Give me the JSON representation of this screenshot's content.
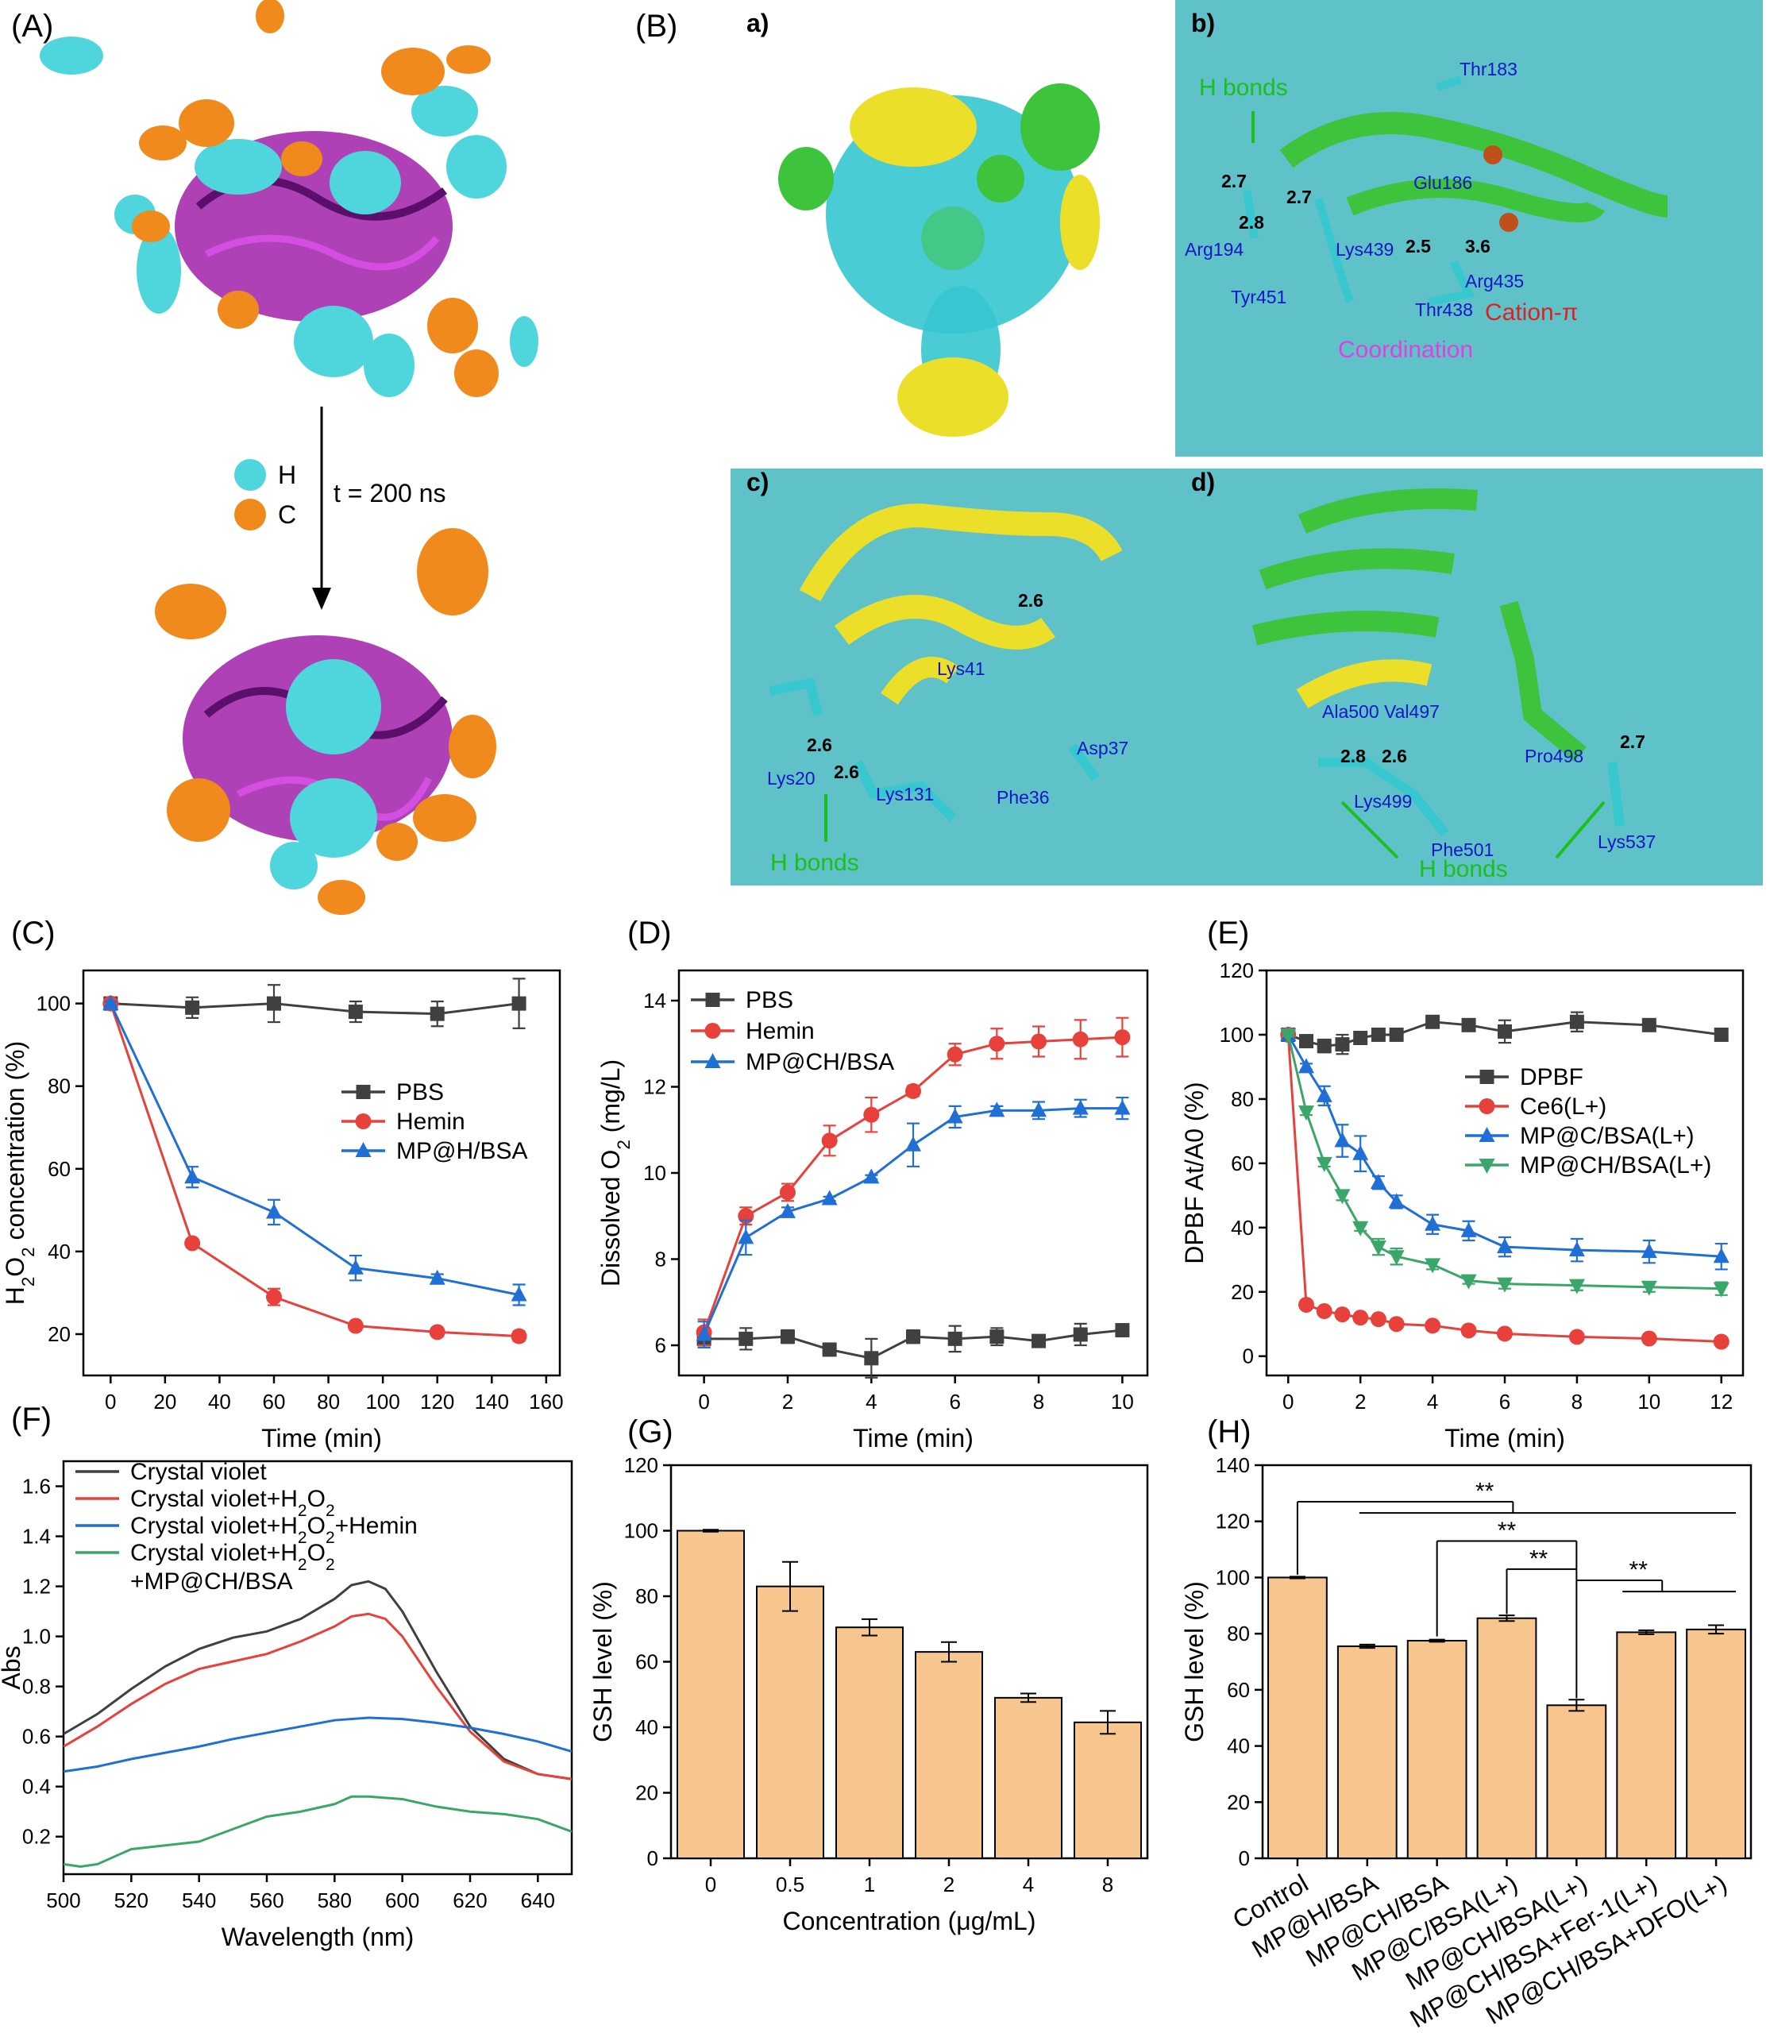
{
  "panel_labels": {
    "A": "(A)",
    "B": "(B)",
    "C": "(C)",
    "D": "(D)",
    "E": "(E)",
    "F": "(F)",
    "G": "(G)",
    "H": "(H)"
  },
  "panel_A": {
    "legend": [
      {
        "label": "H",
        "color": "#4fd6dc"
      },
      {
        "label": "C",
        "color": "#f08a1c"
      }
    ],
    "arrow_label": "t = 200 ns"
  },
  "panel_B": {
    "sub_labels": {
      "a": "a)",
      "b": "b)",
      "c": "c)",
      "d": "d)"
    },
    "b": {
      "annotations": {
        "hbonds": "H bonds",
        "cation_pi": "Cation-π",
        "coordination": "Coordination"
      },
      "residues": [
        "Thr183",
        "Glu186",
        "Arg194",
        "Lys439",
        "Tyr451",
        "Thr438",
        "Arg435"
      ],
      "distances": [
        "2.7",
        "2.7",
        "2.8",
        "2.5",
        "3.6"
      ]
    },
    "c": {
      "annotations": {
        "hbonds": "H bonds"
      },
      "residues": [
        "Lys41",
        "Lys20",
        "Lys131",
        "Asp37",
        "Phe36"
      ],
      "distances": [
        "2.6",
        "2.6",
        "2.6"
      ]
    },
    "d": {
      "annotations": {
        "hbonds": "H bonds"
      },
      "residues": [
        "Ala500",
        "Val497",
        "Pro498",
        "Lys499",
        "Phe501",
        "Lys537"
      ],
      "distances": [
        "2.8",
        "2.6",
        "2.7"
      ]
    }
  },
  "colors": {
    "black": "#404040",
    "red": "#e8403a",
    "blue": "#1f6fd6",
    "green": "#3aa66a",
    "bar": "#f7c68e",
    "cyan": "#36c7cf",
    "magenta": "#a020a8",
    "yellow": "#ecdf2a",
    "lime": "#3ec43c"
  },
  "chart_data": [
    {
      "id": "C",
      "type": "line",
      "xlabel": "Time (min)",
      "ylabel": "H2O2 concentration (%)",
      "xlim": [
        -10,
        165
      ],
      "ylim": [
        10,
        108
      ],
      "xticks": [
        0,
        20,
        40,
        60,
        80,
        100,
        120,
        140,
        160
      ],
      "yticks": [
        20,
        40,
        60,
        80,
        100
      ],
      "legend_position": "right",
      "series": [
        {
          "name": "PBS",
          "color": "#404040",
          "marker": "square",
          "x": [
            0,
            30,
            60,
            90,
            120,
            150
          ],
          "y": [
            100,
            99,
            100,
            98,
            97.5,
            100
          ],
          "err": [
            1,
            2.5,
            4.5,
            2.5,
            3,
            6
          ]
        },
        {
          "name": "Hemin",
          "color": "#e8403a",
          "marker": "circle",
          "x": [
            0,
            30,
            60,
            90,
            120,
            150
          ],
          "y": [
            100,
            42,
            29,
            22,
            20.5,
            19.5
          ],
          "err": [
            0.5,
            1,
            2,
            1,
            1,
            1.2
          ]
        },
        {
          "name": "MP@H/BSA",
          "color": "#1f6fd6",
          "marker": "triangle",
          "x": [
            0,
            30,
            60,
            90,
            120,
            150
          ],
          "y": [
            100,
            58,
            49.5,
            36,
            33.5,
            29.5
          ],
          "err": [
            0.5,
            2.5,
            3,
            3,
            1,
            2.5
          ]
        }
      ]
    },
    {
      "id": "D",
      "type": "line",
      "xlabel": "Time (min)",
      "ylabel": "Dissolved O2 (mg/L)",
      "xlim": [
        -0.6,
        10.6
      ],
      "ylim": [
        5.3,
        14.7
      ],
      "xticks": [
        0,
        2,
        4,
        6,
        8,
        10
      ],
      "yticks": [
        6,
        8,
        10,
        12,
        14
      ],
      "legend_position": "top-left",
      "series": [
        {
          "name": "PBS",
          "color": "#404040",
          "marker": "square",
          "x": [
            0,
            1,
            2,
            3,
            4,
            5,
            6,
            7,
            8,
            9,
            10
          ],
          "y": [
            6.15,
            6.15,
            6.2,
            5.9,
            5.7,
            6.2,
            6.15,
            6.2,
            6.1,
            6.25,
            6.35
          ],
          "err": [
            0.2,
            0.25,
            0.15,
            0.12,
            0.45,
            0.15,
            0.3,
            0.2,
            0.1,
            0.25,
            0.05
          ]
        },
        {
          "name": "Hemin",
          "color": "#e8403a",
          "marker": "circle",
          "x": [
            0,
            1,
            2,
            3,
            4,
            5,
            6,
            7,
            8,
            9,
            10
          ],
          "y": [
            6.3,
            9.0,
            9.55,
            10.75,
            11.35,
            11.9,
            12.75,
            13.0,
            13.05,
            13.1,
            13.15
          ],
          "err": [
            0.3,
            0.2,
            0.2,
            0.35,
            0.4,
            0.12,
            0.25,
            0.35,
            0.35,
            0.45,
            0.45
          ]
        },
        {
          "name": "MP@CH/BSA",
          "color": "#1f6fd6",
          "marker": "triangle",
          "x": [
            0,
            1,
            2,
            3,
            4,
            5,
            6,
            7,
            8,
            9,
            10
          ],
          "y": [
            6.25,
            8.5,
            9.1,
            9.4,
            9.9,
            10.65,
            11.3,
            11.45,
            11.45,
            11.5,
            11.5
          ],
          "err": [
            0.3,
            0.4,
            0.1,
            0.05,
            0.05,
            0.5,
            0.25,
            0.1,
            0.2,
            0.2,
            0.25
          ]
        }
      ]
    },
    {
      "id": "E",
      "type": "line",
      "xlabel": "Time (min)",
      "ylabel": "DPBF At/A0 (%)",
      "xlim": [
        -0.6,
        12.6
      ],
      "ylim": [
        -6,
        120
      ],
      "xticks": [
        0,
        2,
        4,
        6,
        8,
        10,
        12
      ],
      "yticks": [
        0,
        20,
        40,
        60,
        80,
        100,
        120
      ],
      "legend_position": "right",
      "series": [
        {
          "name": "DPBF",
          "color": "#404040",
          "marker": "square",
          "x": [
            0,
            0.5,
            1,
            1.5,
            2,
            2.5,
            3,
            4,
            5,
            6,
            8,
            10,
            12
          ],
          "y": [
            100,
            98,
            96.5,
            97,
            99,
            100,
            100,
            104,
            103,
            101,
            104,
            103,
            100
          ],
          "err": [
            0.5,
            1,
            2,
            3,
            1.5,
            1,
            1,
            1,
            1,
            3.5,
            3,
            1,
            1.5
          ]
        },
        {
          "name": "Ce6(L+)",
          "color": "#e8403a",
          "marker": "circle",
          "x": [
            0,
            0.5,
            1,
            1.5,
            2,
            2.5,
            3,
            4,
            5,
            6,
            8,
            10,
            12
          ],
          "y": [
            100,
            16,
            14,
            13,
            12,
            11.5,
            10,
            9.5,
            8,
            7,
            6,
            5.5,
            4.5
          ],
          "err": [
            0.3,
            0.5,
            0.5,
            0.5,
            0.5,
            0.5,
            0.5,
            0.5,
            0.5,
            0.5,
            0.5,
            0.5,
            0.5
          ]
        },
        {
          "name": "MP@C/BSA(L+)",
          "color": "#1f6fd6",
          "marker": "triangle",
          "x": [
            0,
            0.5,
            1,
            1.5,
            2,
            2.5,
            3,
            4,
            5,
            6,
            8,
            10,
            12
          ],
          "y": [
            100,
            90,
            81,
            67,
            63,
            54,
            48,
            41,
            39,
            34,
            33,
            32.5,
            31
          ],
          "err": [
            0.5,
            1,
            3,
            5,
            5.5,
            2,
            2,
            3,
            3,
            3,
            3.5,
            3.5,
            4
          ]
        },
        {
          "name": "MP@CH/BSA(L+)",
          "color": "#3aa66a",
          "marker": "triangle-down",
          "x": [
            0,
            0.5,
            1,
            1.5,
            2,
            2.5,
            3,
            4,
            5,
            6,
            8,
            10,
            12
          ],
          "y": [
            100,
            76,
            60,
            50,
            40,
            34,
            31,
            28.5,
            23.5,
            22.5,
            22,
            21.5,
            21
          ],
          "err": [
            0.5,
            1,
            1,
            1.5,
            1,
            2.5,
            2.5,
            1.5,
            1,
            1.5,
            1.5,
            1.5,
            2
          ]
        }
      ]
    },
    {
      "id": "F",
      "type": "line",
      "xlabel": "Wavelength (nm)",
      "ylabel": "Abs",
      "xlim": [
        500,
        650
      ],
      "ylim": [
        0.05,
        1.7
      ],
      "xticks": [
        500,
        520,
        540,
        560,
        580,
        600,
        620,
        640
      ],
      "yticks": [
        0.2,
        0.4,
        0.6,
        0.8,
        1.0,
        1.2,
        1.4,
        1.6
      ],
      "legend_position": "top-left",
      "series": [
        {
          "name": "Crystal violet",
          "label_lines": [
            "Crystal violet"
          ],
          "color": "#404040",
          "x": [
            500,
            510,
            520,
            530,
            540,
            550,
            560,
            570,
            580,
            585,
            590,
            595,
            600,
            610,
            620,
            630,
            640,
            650
          ],
          "y": [
            0.61,
            0.69,
            0.79,
            0.88,
            0.95,
            0.995,
            1.02,
            1.07,
            1.15,
            1.205,
            1.22,
            1.19,
            1.1,
            0.86,
            0.64,
            0.51,
            0.45,
            0.43
          ]
        },
        {
          "name": "Crystal violet+H2O2",
          "label_lines": [
            "Crystal violet+H2O2"
          ],
          "color": "#e8403a",
          "x": [
            500,
            510,
            520,
            530,
            540,
            550,
            560,
            570,
            580,
            585,
            590,
            595,
            600,
            610,
            620,
            630,
            640,
            650
          ],
          "y": [
            0.56,
            0.64,
            0.73,
            0.81,
            0.87,
            0.9,
            0.93,
            0.98,
            1.04,
            1.08,
            1.09,
            1.07,
            1.0,
            0.8,
            0.62,
            0.5,
            0.45,
            0.43
          ]
        },
        {
          "name": "Crystal violet+H2O2+Hemin",
          "label_lines": [
            "Crystal violet+H2O2+Hemin"
          ],
          "color": "#1f6fd6",
          "x": [
            500,
            510,
            520,
            530,
            540,
            550,
            560,
            570,
            580,
            590,
            600,
            610,
            620,
            630,
            640,
            650
          ],
          "y": [
            0.46,
            0.48,
            0.51,
            0.535,
            0.56,
            0.59,
            0.615,
            0.64,
            0.665,
            0.675,
            0.67,
            0.655,
            0.635,
            0.61,
            0.58,
            0.54
          ]
        },
        {
          "name": "Crystal violet+H2O2+MP@CH/BSA",
          "label_lines": [
            "Crystal violet+H2O2",
            "+MP@CH/BSA"
          ],
          "color": "#3aa66a",
          "x": [
            500,
            505,
            510,
            515,
            520,
            530,
            540,
            550,
            560,
            570,
            580,
            585,
            590,
            600,
            610,
            620,
            630,
            640,
            650
          ],
          "y": [
            0.09,
            0.08,
            0.09,
            0.12,
            0.15,
            0.165,
            0.18,
            0.23,
            0.28,
            0.3,
            0.33,
            0.36,
            0.36,
            0.35,
            0.32,
            0.3,
            0.29,
            0.27,
            0.22
          ]
        }
      ]
    },
    {
      "id": "G",
      "type": "bar",
      "xlabel": "Concentration (μg/mL)",
      "ylabel": "GSH level (%)",
      "ylim": [
        0,
        120
      ],
      "yticks": [
        0,
        20,
        40,
        60,
        80,
        100,
        120
      ],
      "categories": [
        "0",
        "0.5",
        "1",
        "2",
        "4",
        "8"
      ],
      "values": [
        100,
        83,
        70.5,
        63,
        49,
        41.5
      ],
      "err": [
        0.3,
        7.5,
        2.5,
        3,
        1.3,
        3.5
      ]
    },
    {
      "id": "H",
      "type": "bar",
      "ylabel": "GSH level (%)",
      "ylim": [
        0,
        140
      ],
      "yticks": [
        0,
        20,
        40,
        60,
        80,
        100,
        120,
        140
      ],
      "categories": [
        "Control",
        "MP@H/BSA",
        "MP@CH/BSA",
        "MP@C/BSA(L+)",
        "MP@CH/BSA(L+)",
        "MP@CH/BSA+Fer-1(L+)",
        "MP@CH/BSA+DFO(L+)"
      ],
      "values": [
        100,
        75.5,
        77.5,
        85.5,
        54.5,
        80.5,
        81.5
      ],
      "err": [
        0.3,
        0.6,
        0.4,
        1,
        2,
        0.7,
        1.5
      ],
      "significance": [
        "**",
        "**",
        "**",
        "**"
      ]
    }
  ]
}
